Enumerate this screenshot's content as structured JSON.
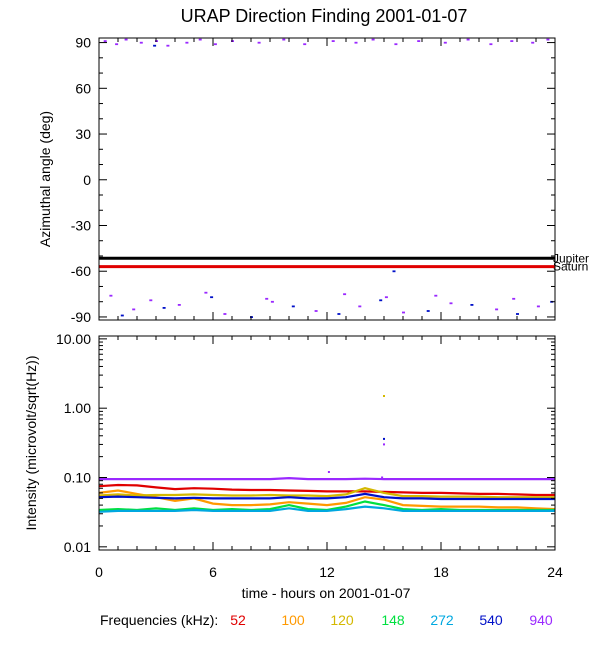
{
  "title": "URAP Direction Finding  2001-01-07",
  "panels": {
    "top": {
      "ylabel": "Azimuthal angle (deg)"
    },
    "bottom": {
      "ylabel": "Intensity (microvolt/sqrt(Hz))"
    }
  },
  "xlabel": "time - hours on 2001-01-07",
  "frequencies": {
    "label": "Frequencies (kHz):",
    "items": [
      {
        "value": "52",
        "color": "#e00000"
      },
      {
        "value": "100",
        "color": "#ff9900"
      },
      {
        "value": "120",
        "color": "#d4b800"
      },
      {
        "value": "148",
        "color": "#00e040"
      },
      {
        "value": "272",
        "color": "#00a8e0"
      },
      {
        "value": "540",
        "color": "#0010c8"
      },
      {
        "value": "940",
        "color": "#9a28ff"
      }
    ]
  },
  "chart_data": [
    {
      "type": "scatter",
      "ylabel": "Azimuthal angle (deg)",
      "xlim": [
        0,
        24
      ],
      "ylim": [
        -92,
        93
      ],
      "x_ticks": [
        0,
        6,
        12,
        18,
        24
      ],
      "x_tick_labels": [
        "0",
        "6",
        "12",
        "18",
        "24"
      ],
      "y_ticks": [
        90,
        60,
        30,
        0,
        -30,
        -60,
        -90
      ],
      "y_tick_labels": [
        "90",
        "60",
        "30",
        "0",
        "-30",
        "-60",
        "-90"
      ],
      "reference_lines": [
        {
          "name": "Jupiter",
          "y": -51.5,
          "color": "#000000"
        },
        {
          "name": "Saturn",
          "y": -57,
          "color": "#e00000"
        }
      ],
      "series": [
        {
          "color": "#9a28ff",
          "points": [
            [
              0.3,
              91
            ],
            [
              0.9,
              89
            ],
            [
              1.4,
              92
            ],
            [
              2.2,
              90
            ],
            [
              3.0,
              91
            ],
            [
              3.6,
              88
            ],
            [
              4.6,
              90
            ],
            [
              5.3,
              92
            ],
            [
              6.1,
              89
            ],
            [
              7.0,
              91
            ],
            [
              8.4,
              90
            ],
            [
              9.7,
              92
            ],
            [
              10.8,
              89
            ],
            [
              12.3,
              91
            ],
            [
              13.5,
              90
            ],
            [
              14.4,
              92
            ],
            [
              15.6,
              89
            ],
            [
              16.8,
              91
            ],
            [
              18.2,
              90
            ],
            [
              19.4,
              92
            ],
            [
              20.6,
              89
            ],
            [
              21.7,
              91
            ],
            [
              22.8,
              90
            ],
            [
              23.6,
              92
            ],
            [
              1.8,
              -85
            ],
            [
              4.2,
              -82
            ],
            [
              6.6,
              -88
            ],
            [
              9.1,
              -80
            ],
            [
              11.4,
              -86
            ],
            [
              13.7,
              -83
            ],
            [
              16.0,
              -87
            ],
            [
              18.5,
              -81
            ],
            [
              20.9,
              -85
            ],
            [
              23.1,
              -83
            ],
            [
              0.6,
              -76
            ],
            [
              2.7,
              -79
            ],
            [
              5.6,
              -74
            ],
            [
              8.8,
              -78
            ],
            [
              12.9,
              -75
            ],
            [
              15.1,
              -77
            ],
            [
              17.7,
              -76
            ],
            [
              21.8,
              -78
            ]
          ]
        },
        {
          "color": "#0010c8",
          "points": [
            [
              2.9,
              88
            ],
            [
              1.2,
              -89
            ],
            [
              3.4,
              -84
            ],
            [
              5.9,
              -77
            ],
            [
              8.0,
              -90
            ],
            [
              10.2,
              -83
            ],
            [
              12.6,
              -88
            ],
            [
              14.8,
              -79
            ],
            [
              15.5,
              -60
            ],
            [
              17.3,
              -86
            ],
            [
              19.6,
              -82
            ],
            [
              22.0,
              -88
            ],
            [
              23.8,
              -80
            ]
          ]
        }
      ]
    },
    {
      "type": "line",
      "ylabel": "Intensity (microvolt/sqrt(Hz))",
      "xlim": [
        0,
        24
      ],
      "ylim": [
        0.009,
        11
      ],
      "yscale": "log",
      "x_ticks": [
        0,
        6,
        12,
        18,
        24
      ],
      "x_tick_labels": [
        "0",
        "6",
        "12",
        "18",
        "24"
      ],
      "y_ticks": [
        10,
        1,
        0.1,
        0.01
      ],
      "y_tick_labels": [
        "10.00",
        "1.00",
        "0.10",
        "0.01"
      ],
      "x": [
        0,
        1,
        2,
        3,
        4,
        5,
        6,
        7,
        8,
        9,
        10,
        11,
        12,
        13,
        14,
        15,
        16,
        17,
        18,
        19,
        20,
        21,
        22,
        23,
        24
      ],
      "series": [
        {
          "name": "52",
          "color": "#e00000",
          "values": [
            0.075,
            0.078,
            0.077,
            0.072,
            0.068,
            0.07,
            0.069,
            0.067,
            0.066,
            0.066,
            0.065,
            0.064,
            0.063,
            0.063,
            0.063,
            0.062,
            0.061,
            0.06,
            0.06,
            0.059,
            0.058,
            0.058,
            0.057,
            0.056,
            0.056
          ]
        },
        {
          "name": "100",
          "color": "#ff9900",
          "values": [
            0.06,
            0.065,
            0.058,
            0.052,
            0.046,
            0.05,
            0.042,
            0.04,
            0.04,
            0.041,
            0.044,
            0.042,
            0.04,
            0.043,
            0.052,
            0.048,
            0.04,
            0.039,
            0.038,
            0.038,
            0.038,
            0.037,
            0.037,
            0.036,
            0.035
          ]
        },
        {
          "name": "120",
          "color": "#d4b800",
          "values": [
            0.055,
            0.057,
            0.055,
            0.056,
            0.056,
            0.057,
            0.056,
            0.055,
            0.055,
            0.056,
            0.055,
            0.055,
            0.054,
            0.057,
            0.07,
            0.06,
            0.054,
            0.054,
            0.053,
            0.053,
            0.053,
            0.052,
            0.052,
            0.052,
            0.052
          ]
        },
        {
          "name": "148",
          "color": "#00e040",
          "values": [
            0.034,
            0.035,
            0.034,
            0.036,
            0.034,
            0.036,
            0.034,
            0.035,
            0.034,
            0.035,
            0.04,
            0.035,
            0.034,
            0.038,
            0.045,
            0.04,
            0.035,
            0.034,
            0.035,
            0.034,
            0.034,
            0.034,
            0.034,
            0.034,
            0.034
          ]
        },
        {
          "name": "272",
          "color": "#00a8e0",
          "values": [
            0.032,
            0.033,
            0.033,
            0.033,
            0.033,
            0.034,
            0.033,
            0.033,
            0.033,
            0.033,
            0.036,
            0.033,
            0.033,
            0.035,
            0.038,
            0.036,
            0.033,
            0.033,
            0.033,
            0.033,
            0.033,
            0.033,
            0.033,
            0.033,
            0.033
          ]
        },
        {
          "name": "540",
          "color": "#0010c8",
          "values": [
            0.052,
            0.053,
            0.052,
            0.051,
            0.05,
            0.051,
            0.05,
            0.05,
            0.05,
            0.05,
            0.052,
            0.05,
            0.05,
            0.052,
            0.058,
            0.052,
            0.05,
            0.05,
            0.049,
            0.049,
            0.049,
            0.049,
            0.049,
            0.049,
            0.049
          ]
        },
        {
          "name": "940",
          "color": "#9a28ff",
          "values": [
            0.095,
            0.095,
            0.095,
            0.095,
            0.095,
            0.095,
            0.095,
            0.095,
            0.095,
            0.095,
            0.098,
            0.095,
            0.095,
            0.095,
            0.096,
            0.095,
            0.095,
            0.095,
            0.095,
            0.095,
            0.095,
            0.095,
            0.095,
            0.095,
            0.095
          ]
        }
      ],
      "outliers": [
        {
          "x": 15.0,
          "y": 1.5,
          "color": "#d4b800"
        },
        {
          "x": 15.0,
          "y": 0.36,
          "color": "#0010c8"
        },
        {
          "x": 15.0,
          "y": 0.3,
          "color": "#9a28ff"
        },
        {
          "x": 12.1,
          "y": 0.12,
          "color": "#9a28ff"
        },
        {
          "x": 14.9,
          "y": 0.1,
          "color": "#9a28ff"
        }
      ]
    }
  ]
}
